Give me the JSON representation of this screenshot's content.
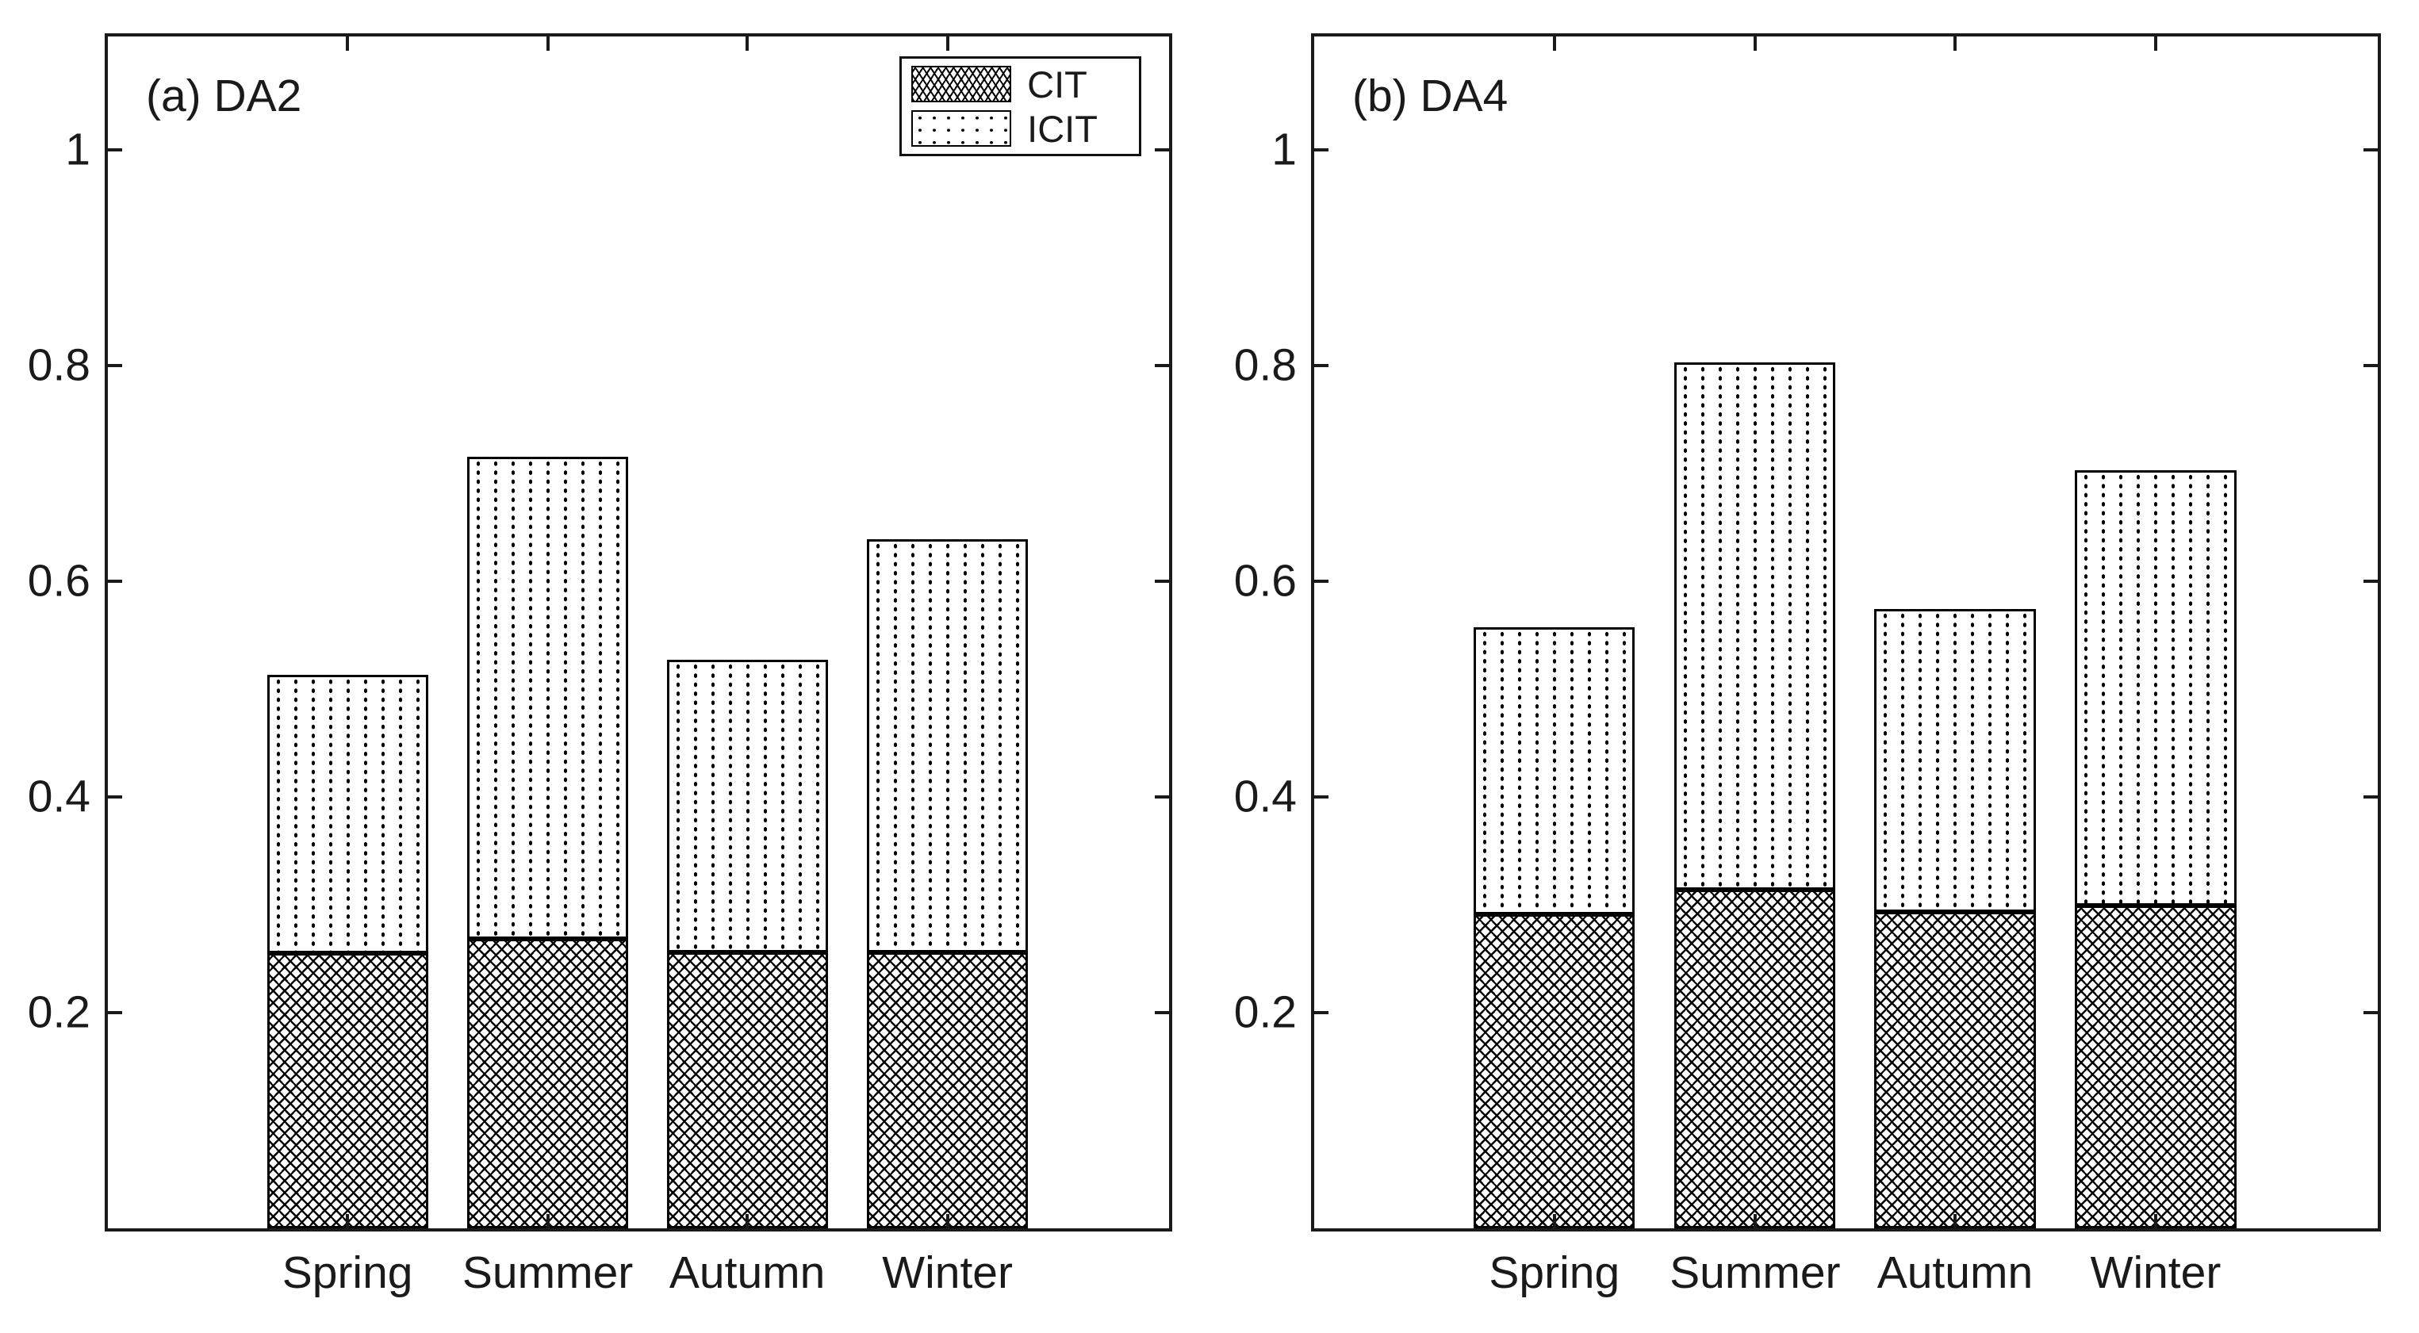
{
  "figure": {
    "background": "#ffffff",
    "axis_color": "#1a1a1a",
    "bar_edge_color": "#000000",
    "pattern_color": "#000000"
  },
  "legend": {
    "position": "inside-top-right-of-panel-a",
    "items": [
      {
        "label": "CIT",
        "pattern": "crosshatch"
      },
      {
        "label": "ICIT",
        "pattern": "dots"
      }
    ]
  },
  "chart_data": [
    {
      "type": "bar",
      "stacked": true,
      "panel_label": "(a) DA2",
      "categories": [
        "Spring",
        "Summer",
        "Autumn",
        "Winter"
      ],
      "series": [
        {
          "name": "CIT",
          "pattern": "crosshatch",
          "values": [
            0.255,
            0.268,
            0.256,
            0.256
          ]
        },
        {
          "name": "ICIT",
          "pattern": "dots",
          "values": [
            0.258,
            0.447,
            0.271,
            0.383
          ]
        }
      ],
      "totals": [
        0.513,
        0.715,
        0.527,
        0.639
      ],
      "xlabel": "",
      "ylabel": "",
      "ylim": [
        0,
        1.105
      ],
      "yticks": [
        0.2,
        0.4,
        0.6,
        0.8,
        1
      ],
      "ytick_labels": [
        "0.2",
        "0.4",
        "0.6",
        "0.8",
        "1"
      ],
      "grid": false
    },
    {
      "type": "bar",
      "stacked": true,
      "panel_label": "(b) DA4",
      "categories": [
        "Spring",
        "Summer",
        "Autumn",
        "Winter"
      ],
      "series": [
        {
          "name": "CIT",
          "pattern": "crosshatch",
          "values": [
            0.291,
            0.314,
            0.293,
            0.299
          ]
        },
        {
          "name": "ICIT",
          "pattern": "dots",
          "values": [
            0.266,
            0.489,
            0.281,
            0.404
          ]
        }
      ],
      "totals": [
        0.557,
        0.803,
        0.574,
        0.703
      ],
      "xlabel": "",
      "ylabel": "",
      "ylim": [
        0,
        1.105
      ],
      "yticks": [
        0.2,
        0.4,
        0.6,
        0.8,
        1
      ],
      "ytick_labels": [
        "0.2",
        "0.4",
        "0.6",
        "0.8",
        "1"
      ],
      "grid": false
    }
  ]
}
